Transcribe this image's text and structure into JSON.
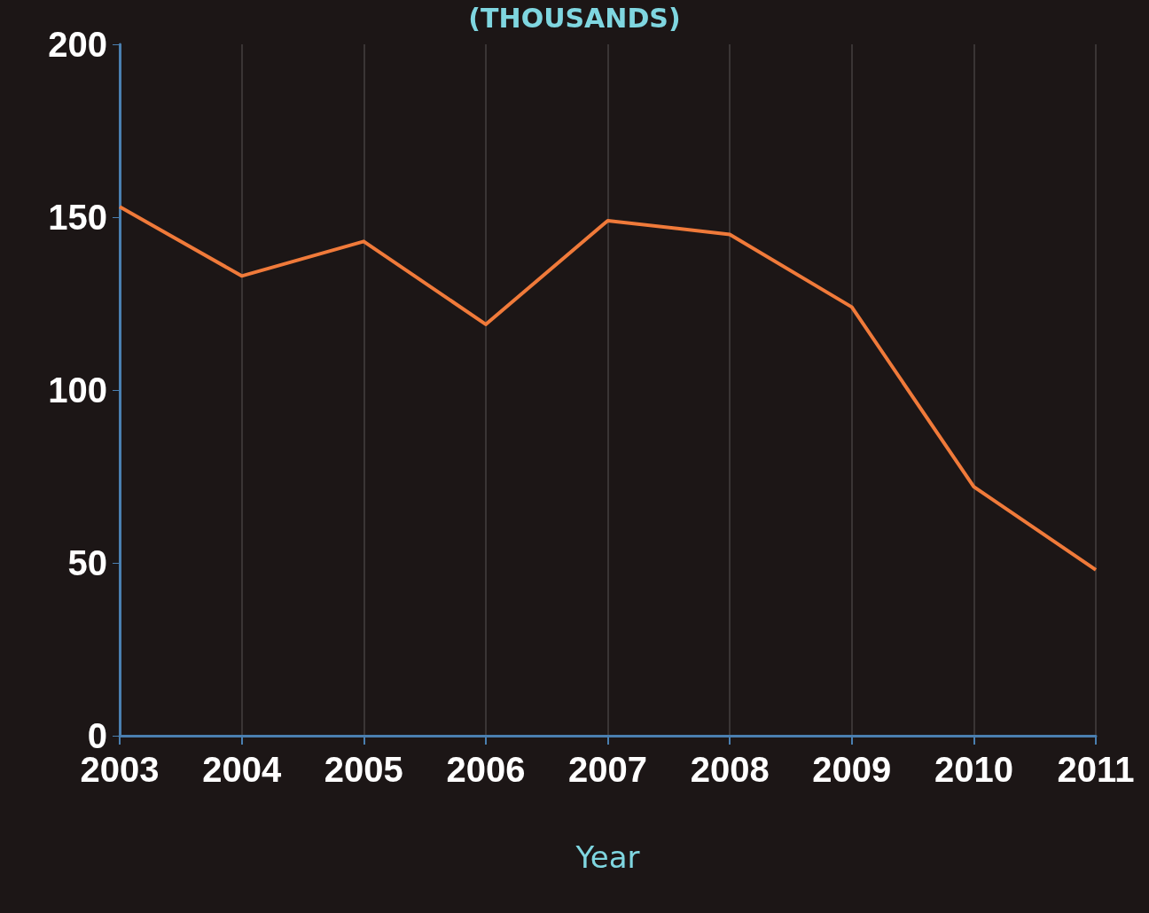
{
  "chart_data": {
    "type": "line",
    "title": "(THOUSANDS)",
    "xlabel": "Year",
    "categories": [
      "2003",
      "2004",
      "2005",
      "2006",
      "2007",
      "2008",
      "2009",
      "2010",
      "2011"
    ],
    "series": [
      {
        "color": "#f07a3a",
        "values": [
          153,
          133,
          143,
          119,
          149,
          145,
          124,
          72,
          48
        ]
      }
    ],
    "ylim": [
      0,
      200
    ],
    "yticks": [
      0,
      50,
      100,
      150,
      200
    ],
    "grid": "x",
    "marker": "none",
    "line_style": "solid"
  }
}
